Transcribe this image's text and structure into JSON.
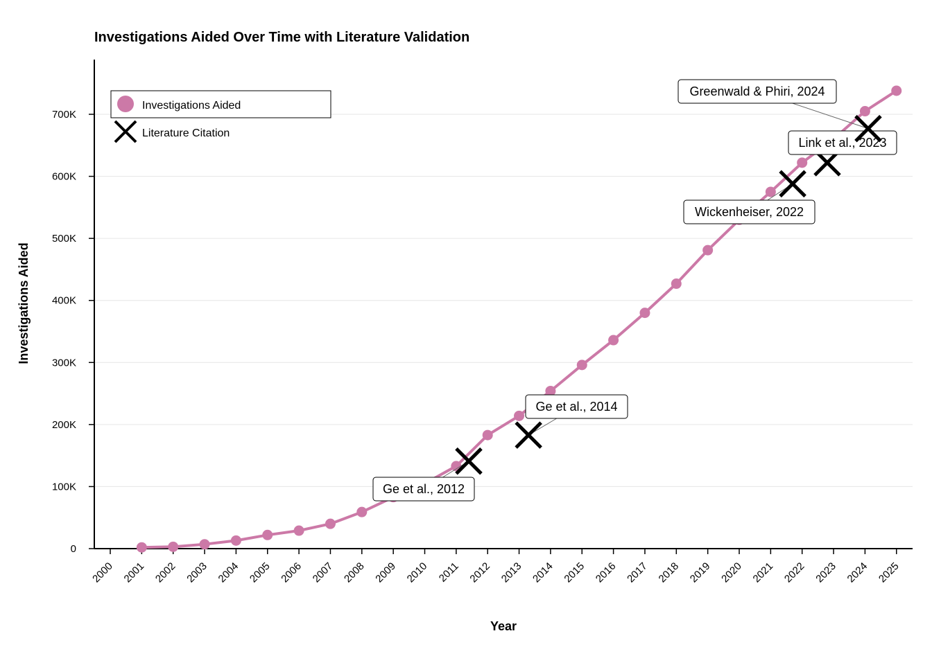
{
  "chart_data": {
    "type": "line",
    "title": "Investigations Aided Over Time with Literature Validation",
    "xlabel": "Year",
    "ylabel": "Investigations Aided",
    "x": [
      2001,
      2002,
      2003,
      2004,
      2005,
      2006,
      2007,
      2008,
      2009,
      2010,
      2011,
      2012,
      2013,
      2014,
      2015,
      2016,
      2017,
      2018,
      2019,
      2020,
      2021,
      2022,
      2023,
      2024,
      2025
    ],
    "x_ticks": [
      "2000",
      "2001",
      "2002",
      "2003",
      "2004",
      "2005",
      "2006",
      "2007",
      "2008",
      "2009",
      "2010",
      "2011",
      "2012",
      "2013",
      "2014",
      "2015",
      "2016",
      "2017",
      "2018",
      "2019",
      "2020",
      "2021",
      "2022",
      "2023",
      "2024",
      "2025"
    ],
    "y_ticks": [
      {
        "value": 0,
        "label": "0"
      },
      {
        "value": 100000,
        "label": "100K"
      },
      {
        "value": 200000,
        "label": "200K"
      },
      {
        "value": 300000,
        "label": "300K"
      },
      {
        "value": 400000,
        "label": "400K"
      },
      {
        "value": 500000,
        "label": "500K"
      },
      {
        "value": 600000,
        "label": "600K"
      },
      {
        "value": 700000,
        "label": "700K"
      }
    ],
    "xlim": [
      1999.5,
      2025.5
    ],
    "ylim": [
      0,
      790000
    ],
    "grid": "horizontal",
    "legend_position": "top-left",
    "series": [
      {
        "name": "Investigations Aided",
        "color": "#cc79a7",
        "values": [
          2000,
          3000,
          7000,
          13000,
          22000,
          29000,
          40000,
          59000,
          83000,
          105000,
          133000,
          183000,
          214000,
          254000,
          296000,
          336000,
          380000,
          427000,
          481000,
          530000,
          575000,
          622000,
          660000,
          705000,
          738000
        ]
      }
    ],
    "citations": {
      "name": "Literature Citation",
      "color": "#000000",
      "points": [
        {
          "label": "Ge et al., 2012",
          "x": 2011.4,
          "y": 141000
        },
        {
          "label": "Ge et al., 2014",
          "x": 2013.3,
          "y": 183000
        },
        {
          "label": "Wickenheiser, 2022",
          "x": 2021.7,
          "y": 588000
        },
        {
          "label": "Link et al., 2023",
          "x": 2022.8,
          "y": 622000
        },
        {
          "label": "Greenwald & Phiri, 2024",
          "x": 2024.1,
          "y": 677000
        }
      ]
    }
  }
}
